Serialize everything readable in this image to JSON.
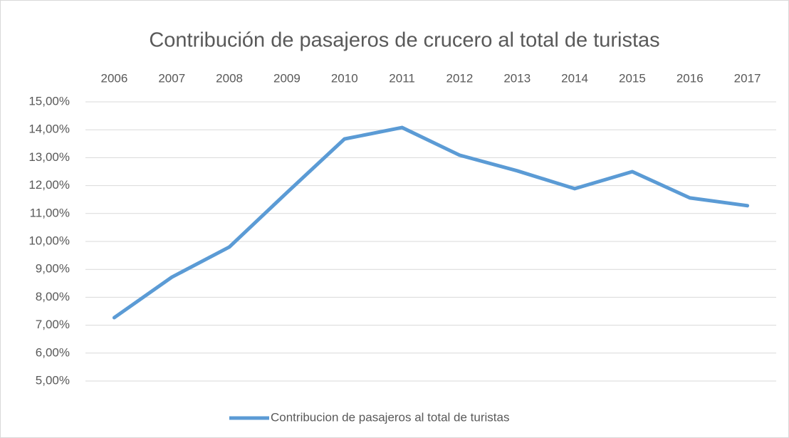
{
  "chart_data": {
    "type": "line",
    "title": "Contribución de pasajeros de crucero al total de turistas",
    "categories": [
      "2006",
      "2007",
      "2008",
      "2009",
      "2010",
      "2011",
      "2012",
      "2013",
      "2014",
      "2015",
      "2016",
      "2017"
    ],
    "series": [
      {
        "name": "Contribucion de pasajeros al total de turistas",
        "color": "#5b9bd5",
        "values": [
          7.27,
          8.72,
          9.8,
          11.75,
          13.67,
          14.08,
          13.09,
          12.53,
          11.89,
          12.5,
          11.56,
          11.28
        ]
      }
    ],
    "ylim": [
      5,
      15
    ],
    "yticks": [
      {
        "value": 5,
        "label": "5,00%"
      },
      {
        "value": 6,
        "label": "6,00%"
      },
      {
        "value": 7,
        "label": "7,00%"
      },
      {
        "value": 8,
        "label": "8,00%"
      },
      {
        "value": 9,
        "label": "9,00%"
      },
      {
        "value": 10,
        "label": "10,00%"
      },
      {
        "value": 11,
        "label": "11,00%"
      },
      {
        "value": 12,
        "label": "12,00%"
      },
      {
        "value": 13,
        "label": "13,00%"
      },
      {
        "value": 14,
        "label": "14,00%"
      },
      {
        "value": 15,
        "label": "15,00%"
      }
    ],
    "grid": true,
    "legend": "bottom",
    "category_axis": "top"
  }
}
